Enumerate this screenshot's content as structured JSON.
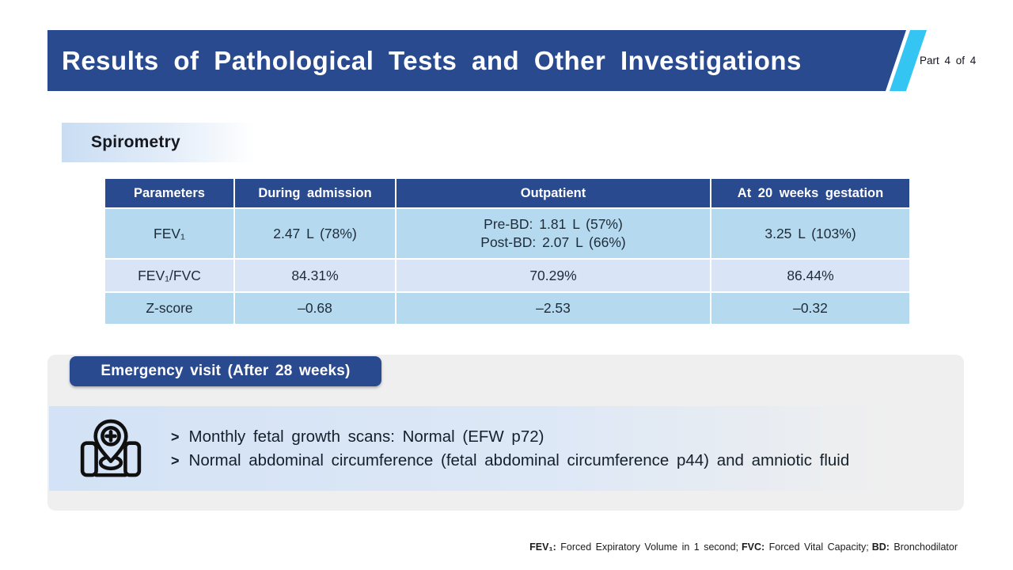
{
  "slide": {
    "title": "Results of Pathological Tests and Other Investigations",
    "part_label": "Part 4 of 4"
  },
  "spirometry": {
    "section_label": "Spirometry",
    "table": {
      "columns": [
        "Parameters",
        "During admission",
        "Outpatient",
        "At 20 weeks gestation"
      ],
      "rows": [
        [
          "FEV₁",
          "2.47 L (78%)",
          "Pre-BD: 1.81 L (57%)\nPost-BD: 2.07 L (66%)",
          "3.25 L (103%)"
        ],
        [
          "FEV₁/FVC",
          "84.31%",
          "70.29%",
          "86.44%"
        ],
        [
          "Z-score",
          "–0.68",
          "–2.53",
          "–0.32"
        ]
      ]
    }
  },
  "emergency": {
    "badge_label": "Emergency visit (After 28 weeks)",
    "icon": "medical-map-pin-icon",
    "bullet_marker": ">",
    "bullets": [
      "Monthly fetal growth scans: Normal (EFW p72)",
      "Normal abdominal circumference (fetal abdominal circumference p44) and amniotic fluid"
    ]
  },
  "footer": {
    "abbreviations": [
      {
        "term": "FEV₁:",
        "definition": "Forced Expiratory Volume in 1 second;"
      },
      {
        "term": "FVC:",
        "definition": "Forced Vital Capacity;"
      },
      {
        "term": "BD:",
        "definition": "Bronchodilator"
      }
    ]
  },
  "colors": {
    "navy": "#2a4a8f",
    "cyan": "#35c5f3",
    "row_blue": "#b5d9ee",
    "row_blue_light": "#d9e5f6",
    "panel_gray": "#efefef",
    "band_blue": "#d3e2f6"
  }
}
